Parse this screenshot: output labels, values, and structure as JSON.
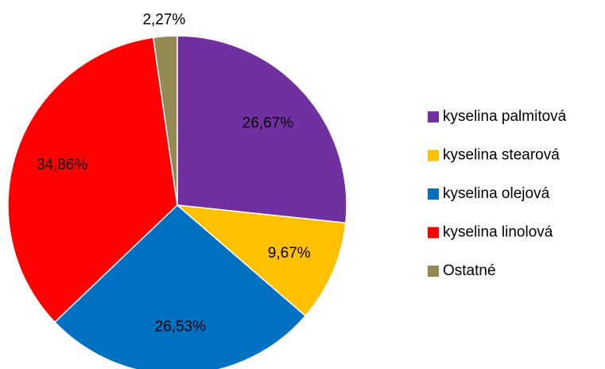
{
  "chart_data": {
    "type": "pie",
    "categories": [
      "kyselina palmitová",
      "kyselina stearová",
      "kyselina olejová",
      "kyselina linolová",
      "Ostatné"
    ],
    "values": [
      26.67,
      9.67,
      26.53,
      34.86,
      2.27
    ],
    "value_labels": [
      "26,67%",
      "9,67%",
      "26,53%",
      "34,86%",
      "2,27%"
    ],
    "colors": [
      "#7030a0",
      "#ffc000",
      "#0070c0",
      "#ff0000",
      "#948a54"
    ],
    "legend": "right"
  }
}
